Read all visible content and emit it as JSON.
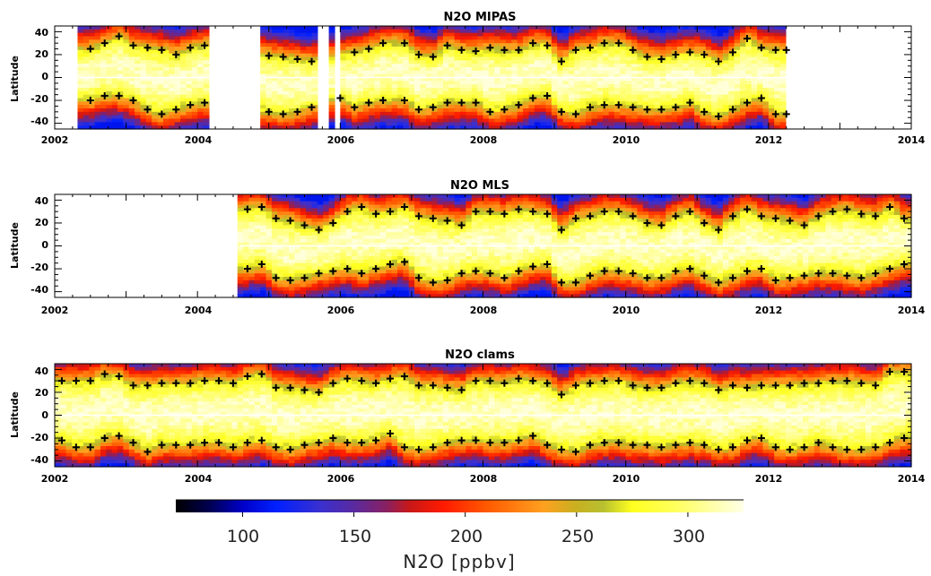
{
  "chart_data": [
    {
      "type": "heatmap",
      "title": "N2O MIPAS",
      "xlabel": "",
      "ylabel": "Latitude",
      "xlim": [
        2002,
        2014
      ],
      "ylim": [
        -45,
        45
      ],
      "xticks": [
        "2002",
        "2004",
        "2006",
        "2008",
        "2010",
        "2012",
        "2014"
      ],
      "yticks": [
        "40",
        "20",
        "0",
        "-20",
        "-40"
      ],
      "data_coverage": [
        [
          2002.33,
          2004.2
        ],
        [
          2004.92,
          2005.72
        ],
        [
          2005.82,
          2005.9
        ],
        [
          2006.0,
          2012.25
        ]
      ],
      "markers_north": [
        [
          2002.5,
          25
        ],
        [
          2002.7,
          30
        ],
        [
          2002.9,
          36
        ],
        [
          2003.1,
          28
        ],
        [
          2003.3,
          26
        ],
        [
          2003.5,
          24
        ],
        [
          2003.7,
          20
        ],
        [
          2003.9,
          26
        ],
        [
          2004.1,
          28
        ],
        [
          2005.0,
          19
        ],
        [
          2005.2,
          18
        ],
        [
          2005.4,
          16
        ],
        [
          2005.6,
          14
        ],
        [
          2006.2,
          22
        ],
        [
          2006.4,
          25
        ],
        [
          2006.6,
          30
        ],
        [
          2006.9,
          30
        ],
        [
          2007.1,
          20
        ],
        [
          2007.3,
          18
        ],
        [
          2007.5,
          28
        ],
        [
          2007.7,
          24
        ],
        [
          2007.9,
          23
        ],
        [
          2008.1,
          26
        ],
        [
          2008.3,
          24
        ],
        [
          2008.5,
          24
        ],
        [
          2008.7,
          30
        ],
        [
          2008.9,
          28
        ],
        [
          2009.1,
          14
        ],
        [
          2009.3,
          24
        ],
        [
          2009.5,
          26
        ],
        [
          2009.7,
          30
        ],
        [
          2009.9,
          30
        ],
        [
          2010.1,
          24
        ],
        [
          2010.3,
          18
        ],
        [
          2010.5,
          16
        ],
        [
          2010.7,
          20
        ],
        [
          2010.9,
          22
        ],
        [
          2011.1,
          20
        ],
        [
          2011.3,
          14
        ],
        [
          2011.5,
          22
        ],
        [
          2011.7,
          34
        ],
        [
          2011.9,
          26
        ],
        [
          2012.1,
          24
        ],
        [
          2012.25,
          24
        ]
      ],
      "markers_south": [
        [
          2002.5,
          -20
        ],
        [
          2002.7,
          -16
        ],
        [
          2002.9,
          -16
        ],
        [
          2003.1,
          -20
        ],
        [
          2003.3,
          -28
        ],
        [
          2003.5,
          -32
        ],
        [
          2003.7,
          -28
        ],
        [
          2003.9,
          -24
        ],
        [
          2004.1,
          -22
        ],
        [
          2005.0,
          -30
        ],
        [
          2005.2,
          -32
        ],
        [
          2005.4,
          -30
        ],
        [
          2005.6,
          -26
        ],
        [
          2006.0,
          -18
        ],
        [
          2006.2,
          -26
        ],
        [
          2006.4,
          -22
        ],
        [
          2006.6,
          -20
        ],
        [
          2006.9,
          -20
        ],
        [
          2007.1,
          -28
        ],
        [
          2007.3,
          -26
        ],
        [
          2007.5,
          -22
        ],
        [
          2007.7,
          -22
        ],
        [
          2007.9,
          -22
        ],
        [
          2008.1,
          -30
        ],
        [
          2008.3,
          -28
        ],
        [
          2008.5,
          -24
        ],
        [
          2008.7,
          -18
        ],
        [
          2008.9,
          -16
        ],
        [
          2009.1,
          -30
        ],
        [
          2009.3,
          -32
        ],
        [
          2009.5,
          -26
        ],
        [
          2009.7,
          -24
        ],
        [
          2009.9,
          -24
        ],
        [
          2010.1,
          -26
        ],
        [
          2010.3,
          -28
        ],
        [
          2010.5,
          -28
        ],
        [
          2010.7,
          -26
        ],
        [
          2010.9,
          -22
        ],
        [
          2011.1,
          -30
        ],
        [
          2011.3,
          -34
        ],
        [
          2011.5,
          -28
        ],
        [
          2011.7,
          -22
        ],
        [
          2011.9,
          -18
        ],
        [
          2012.1,
          -32
        ],
        [
          2012.25,
          -32
        ]
      ]
    },
    {
      "type": "heatmap",
      "title": "N2O MLS",
      "xlabel": "",
      "ylabel": "Latitude",
      "xlim": [
        2002,
        2014
      ],
      "ylim": [
        -45,
        45
      ],
      "xticks": [
        "2002",
        "2004",
        "2006",
        "2008",
        "2010",
        "2012",
        "2014"
      ],
      "yticks": [
        "40",
        "20",
        "0",
        "-20",
        "-40"
      ],
      "data_coverage": [
        [
          2004.6,
          2014.0
        ]
      ],
      "markers_north": [
        [
          2004.7,
          32
        ],
        [
          2004.9,
          34
        ],
        [
          2005.1,
          24
        ],
        [
          2005.3,
          22
        ],
        [
          2005.5,
          18
        ],
        [
          2005.7,
          14
        ],
        [
          2005.9,
          20
        ],
        [
          2006.1,
          30
        ],
        [
          2006.3,
          34
        ],
        [
          2006.5,
          28
        ],
        [
          2006.7,
          30
        ],
        [
          2006.9,
          34
        ],
        [
          2007.1,
          26
        ],
        [
          2007.3,
          24
        ],
        [
          2007.5,
          22
        ],
        [
          2007.7,
          18
        ],
        [
          2007.9,
          30
        ],
        [
          2008.1,
          30
        ],
        [
          2008.3,
          28
        ],
        [
          2008.5,
          32
        ],
        [
          2008.7,
          30
        ],
        [
          2008.9,
          28
        ],
        [
          2009.1,
          14
        ],
        [
          2009.3,
          24
        ],
        [
          2009.5,
          26
        ],
        [
          2009.7,
          30
        ],
        [
          2009.9,
          30
        ],
        [
          2010.1,
          26
        ],
        [
          2010.3,
          20
        ],
        [
          2010.5,
          18
        ],
        [
          2010.7,
          26
        ],
        [
          2010.9,
          30
        ],
        [
          2011.1,
          20
        ],
        [
          2011.3,
          14
        ],
        [
          2011.5,
          26
        ],
        [
          2011.7,
          32
        ],
        [
          2011.9,
          26
        ],
        [
          2012.1,
          24
        ],
        [
          2012.3,
          22
        ],
        [
          2012.5,
          18
        ],
        [
          2012.7,
          26
        ],
        [
          2012.9,
          30
        ],
        [
          2013.1,
          32
        ],
        [
          2013.3,
          28
        ],
        [
          2013.5,
          26
        ],
        [
          2013.7,
          34
        ],
        [
          2013.9,
          24
        ]
      ],
      "markers_south": [
        [
          2004.7,
          -20
        ],
        [
          2004.9,
          -16
        ],
        [
          2005.1,
          -28
        ],
        [
          2005.3,
          -30
        ],
        [
          2005.5,
          -28
        ],
        [
          2005.7,
          -24
        ],
        [
          2005.9,
          -22
        ],
        [
          2006.1,
          -20
        ],
        [
          2006.3,
          -24
        ],
        [
          2006.5,
          -20
        ],
        [
          2006.7,
          -16
        ],
        [
          2006.9,
          -14
        ],
        [
          2007.1,
          -28
        ],
        [
          2007.3,
          -32
        ],
        [
          2007.5,
          -30
        ],
        [
          2007.7,
          -24
        ],
        [
          2007.9,
          -22
        ],
        [
          2008.1,
          -24
        ],
        [
          2008.3,
          -28
        ],
        [
          2008.5,
          -22
        ],
        [
          2008.7,
          -18
        ],
        [
          2008.9,
          -16
        ],
        [
          2009.1,
          -32
        ],
        [
          2009.3,
          -32
        ],
        [
          2009.5,
          -26
        ],
        [
          2009.7,
          -22
        ],
        [
          2009.9,
          -22
        ],
        [
          2010.1,
          -24
        ],
        [
          2010.3,
          -28
        ],
        [
          2010.5,
          -28
        ],
        [
          2010.7,
          -22
        ],
        [
          2010.9,
          -20
        ],
        [
          2011.1,
          -26
        ],
        [
          2011.3,
          -32
        ],
        [
          2011.5,
          -28
        ],
        [
          2011.7,
          -22
        ],
        [
          2011.9,
          -20
        ],
        [
          2012.1,
          -30
        ],
        [
          2012.3,
          -28
        ],
        [
          2012.5,
          -26
        ],
        [
          2012.7,
          -24
        ],
        [
          2012.9,
          -24
        ],
        [
          2013.1,
          -26
        ],
        [
          2013.3,
          -28
        ],
        [
          2013.5,
          -24
        ],
        [
          2013.7,
          -20
        ],
        [
          2013.9,
          -16
        ]
      ]
    },
    {
      "type": "heatmap",
      "title": "N2O clams",
      "xlabel": "",
      "ylabel": "Latitude",
      "xlim": [
        2002,
        2014
      ],
      "ylim": [
        -45,
        45
      ],
      "xticks": [
        "2002",
        "2004",
        "2006",
        "2008",
        "2010",
        "2012",
        "2014"
      ],
      "yticks": [
        "40",
        "20",
        "0",
        "-20",
        "-40"
      ],
      "data_coverage": [
        [
          2002.0,
          2014.0
        ]
      ],
      "markers_north": [
        [
          2002.1,
          30
        ],
        [
          2002.3,
          30
        ],
        [
          2002.5,
          30
        ],
        [
          2002.7,
          36
        ],
        [
          2002.9,
          34
        ],
        [
          2003.1,
          26
        ],
        [
          2003.3,
          26
        ],
        [
          2003.5,
          28
        ],
        [
          2003.7,
          28
        ],
        [
          2003.9,
          28
        ],
        [
          2004.1,
          30
        ],
        [
          2004.3,
          30
        ],
        [
          2004.5,
          28
        ],
        [
          2004.7,
          34
        ],
        [
          2004.9,
          36
        ],
        [
          2005.1,
          24
        ],
        [
          2005.3,
          24
        ],
        [
          2005.5,
          22
        ],
        [
          2005.7,
          20
        ],
        [
          2005.9,
          28
        ],
        [
          2006.1,
          32
        ],
        [
          2006.3,
          30
        ],
        [
          2006.5,
          28
        ],
        [
          2006.7,
          32
        ],
        [
          2006.9,
          34
        ],
        [
          2007.1,
          26
        ],
        [
          2007.3,
          26
        ],
        [
          2007.5,
          24
        ],
        [
          2007.7,
          22
        ],
        [
          2007.9,
          30
        ],
        [
          2008.1,
          30
        ],
        [
          2008.3,
          28
        ],
        [
          2008.5,
          32
        ],
        [
          2008.7,
          30
        ],
        [
          2008.9,
          28
        ],
        [
          2009.1,
          18
        ],
        [
          2009.3,
          26
        ],
        [
          2009.5,
          28
        ],
        [
          2009.7,
          30
        ],
        [
          2009.9,
          30
        ],
        [
          2010.1,
          26
        ],
        [
          2010.3,
          24
        ],
        [
          2010.5,
          24
        ],
        [
          2010.7,
          28
        ],
        [
          2010.9,
          30
        ],
        [
          2011.1,
          28
        ],
        [
          2011.3,
          22
        ],
        [
          2011.5,
          26
        ],
        [
          2011.7,
          24
        ],
        [
          2011.9,
          26
        ],
        [
          2012.1,
          26
        ],
        [
          2012.3,
          26
        ],
        [
          2012.5,
          28
        ],
        [
          2012.7,
          28
        ],
        [
          2012.9,
          30
        ],
        [
          2013.1,
          30
        ],
        [
          2013.3,
          28
        ],
        [
          2013.5,
          26
        ],
        [
          2013.7,
          38
        ],
        [
          2013.9,
          38
        ]
      ],
      "markers_south": [
        [
          2002.1,
          -22
        ],
        [
          2002.3,
          -28
        ],
        [
          2002.5,
          -28
        ],
        [
          2002.7,
          -20
        ],
        [
          2002.9,
          -18
        ],
        [
          2003.1,
          -24
        ],
        [
          2003.3,
          -32
        ],
        [
          2003.5,
          -26
        ],
        [
          2003.7,
          -26
        ],
        [
          2003.9,
          -26
        ],
        [
          2004.1,
          -24
        ],
        [
          2004.3,
          -24
        ],
        [
          2004.5,
          -28
        ],
        [
          2004.7,
          -24
        ],
        [
          2004.9,
          -22
        ],
        [
          2005.1,
          -28
        ],
        [
          2005.3,
          -30
        ],
        [
          2005.5,
          -26
        ],
        [
          2005.7,
          -24
        ],
        [
          2005.9,
          -20
        ],
        [
          2006.1,
          -24
        ],
        [
          2006.3,
          -24
        ],
        [
          2006.5,
          -22
        ],
        [
          2006.7,
          -16
        ],
        [
          2006.9,
          -28
        ],
        [
          2007.1,
          -30
        ],
        [
          2007.3,
          -28
        ],
        [
          2007.5,
          -24
        ],
        [
          2007.7,
          -22
        ],
        [
          2007.9,
          -22
        ],
        [
          2008.1,
          -24
        ],
        [
          2008.3,
          -24
        ],
        [
          2008.5,
          -22
        ],
        [
          2008.7,
          -18
        ],
        [
          2008.9,
          -26
        ],
        [
          2009.1,
          -30
        ],
        [
          2009.3,
          -32
        ],
        [
          2009.5,
          -26
        ],
        [
          2009.7,
          -24
        ],
        [
          2009.9,
          -24
        ],
        [
          2010.1,
          -26
        ],
        [
          2010.3,
          -26
        ],
        [
          2010.5,
          -28
        ],
        [
          2010.7,
          -26
        ],
        [
          2010.9,
          -24
        ],
        [
          2011.1,
          -26
        ],
        [
          2011.3,
          -30
        ],
        [
          2011.5,
          -28
        ],
        [
          2011.7,
          -22
        ],
        [
          2011.9,
          -20
        ],
        [
          2012.1,
          -28
        ],
        [
          2012.3,
          -30
        ],
        [
          2012.5,
          -28
        ],
        [
          2012.7,
          -24
        ],
        [
          2012.9,
          -28
        ],
        [
          2013.1,
          -30
        ],
        [
          2013.3,
          -30
        ],
        [
          2013.5,
          -28
        ],
        [
          2013.7,
          -24
        ],
        [
          2013.9,
          -20
        ]
      ]
    }
  ],
  "colorbar": {
    "label": "N2O [ppbv]",
    "range": [
      70,
      325
    ],
    "ticks": [
      "100",
      "150",
      "200",
      "250",
      "300"
    ],
    "tick_values": [
      100,
      150,
      200,
      250,
      300
    ],
    "stops": [
      {
        "v": 70,
        "color": "#000000"
      },
      {
        "v": 85,
        "color": "#000050"
      },
      {
        "v": 100,
        "color": "#0000c8"
      },
      {
        "v": 115,
        "color": "#0020ff"
      },
      {
        "v": 135,
        "color": "#3a30d0"
      },
      {
        "v": 150,
        "color": "#5a2aa0"
      },
      {
        "v": 165,
        "color": "#8a2060"
      },
      {
        "v": 175,
        "color": "#c81818"
      },
      {
        "v": 190,
        "color": "#ff1a00"
      },
      {
        "v": 210,
        "color": "#ff5a00"
      },
      {
        "v": 235,
        "color": "#ffa020"
      },
      {
        "v": 250,
        "color": "#c8b020"
      },
      {
        "v": 262,
        "color": "#b8c030"
      },
      {
        "v": 275,
        "color": "#ffff20"
      },
      {
        "v": 295,
        "color": "#ffff60"
      },
      {
        "v": 325,
        "color": "#ffffe8"
      }
    ]
  }
}
